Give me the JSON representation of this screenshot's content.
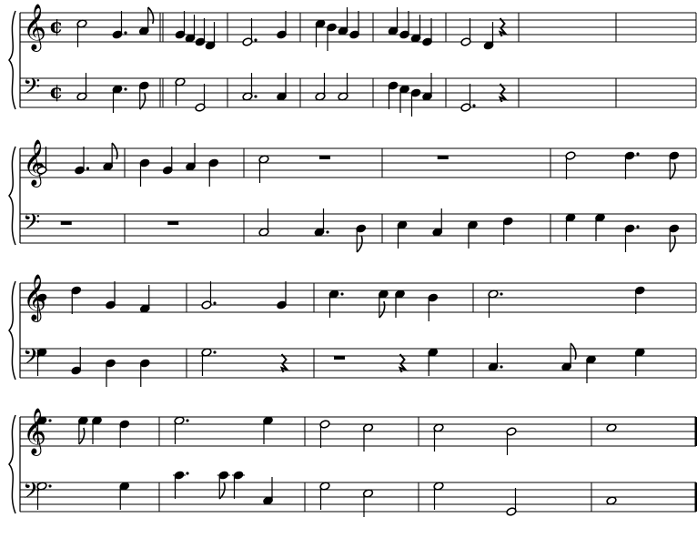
{
  "score": {
    "time_signature_symbol": "cut-time",
    "clefs": [
      "treble",
      "bass"
    ],
    "systems": [
      {
        "bars": 7,
        "show_time": true,
        "treble": [
          [
            0,
            0,
            5,
            "h"
          ],
          [
            0,
            2,
            2,
            "q."
          ],
          [
            0,
            3.5,
            3,
            "e"
          ],
          [
            1,
            0,
            2,
            "q"
          ],
          [
            1,
            1,
            1,
            "q"
          ],
          [
            1,
            2,
            0,
            "q"
          ],
          [
            1,
            3,
            -1,
            "q"
          ],
          [
            2,
            0,
            0,
            "h."
          ],
          [
            2,
            3,
            2,
            "q"
          ],
          [
            3,
            0,
            5,
            "q"
          ],
          [
            3,
            1,
            4,
            "q"
          ],
          [
            3,
            2,
            3,
            "q"
          ],
          [
            3,
            3,
            2,
            "q"
          ],
          [
            4,
            0,
            3,
            "q"
          ],
          [
            4,
            1,
            2,
            "q"
          ],
          [
            4,
            2,
            1,
            "q"
          ],
          [
            4,
            3,
            0,
            "q"
          ],
          [
            5,
            0,
            0,
            "h"
          ],
          [
            5,
            2,
            -1,
            "q"
          ],
          [
            5,
            3,
            0,
            "r"
          ]
        ],
        "bass": [
          [
            0,
            0,
            3,
            "h"
          ],
          [
            0,
            2,
            5,
            "q."
          ],
          [
            0,
            3.5,
            6,
            "e"
          ],
          [
            1,
            0,
            7,
            "h"
          ],
          [
            1,
            2,
            0,
            "h"
          ],
          [
            2,
            0,
            3,
            "h."
          ],
          [
            2,
            3,
            3,
            "q"
          ],
          [
            3,
            0,
            3,
            "h"
          ],
          [
            3,
            2,
            3,
            "h"
          ],
          [
            4,
            0,
            6,
            "q"
          ],
          [
            4,
            1,
            5,
            "q"
          ],
          [
            4,
            2,
            4,
            "q"
          ],
          [
            4,
            3,
            3,
            "q"
          ],
          [
            5,
            0,
            0,
            "h."
          ],
          [
            5,
            3,
            4,
            "r"
          ]
        ]
      },
      {
        "bars": 5,
        "show_time": false,
        "treble": [
          [
            0,
            0,
            2,
            "h"
          ],
          [
            0,
            2,
            2,
            "q."
          ],
          [
            0,
            3.5,
            3,
            "e"
          ],
          [
            1,
            0,
            4,
            "q"
          ],
          [
            1,
            1,
            2,
            "q"
          ],
          [
            1,
            2,
            3,
            "q"
          ],
          [
            1,
            3,
            4,
            "q"
          ],
          [
            2,
            0,
            5,
            "h"
          ],
          [
            2,
            2,
            6,
            "R"
          ],
          [
            3,
            1,
            6,
            "R"
          ],
          [
            4,
            0,
            6,
            "h"
          ],
          [
            4,
            2,
            6,
            "q."
          ],
          [
            4,
            3.5,
            6,
            "e"
          ]
        ],
        "bass": [
          [
            0,
            1,
            4,
            "R"
          ],
          [
            1,
            1,
            4,
            "R"
          ],
          [
            2,
            0,
            3,
            "h"
          ],
          [
            2,
            2,
            3,
            "q."
          ],
          [
            2,
            3.5,
            4,
            "e"
          ],
          [
            3,
            0,
            5,
            "q"
          ],
          [
            3,
            1,
            3,
            "q"
          ],
          [
            3,
            2,
            5,
            "q"
          ],
          [
            3,
            3,
            6,
            "q"
          ],
          [
            4,
            0,
            7,
            "q"
          ],
          [
            4,
            1,
            7,
            "q"
          ],
          [
            4,
            2,
            4,
            "q."
          ],
          [
            4,
            3.5,
            4,
            "e"
          ]
        ]
      },
      {
        "bars": 4,
        "show_time": false,
        "treble": [
          [
            0,
            0,
            4,
            "q"
          ],
          [
            0,
            1,
            6,
            "q"
          ],
          [
            0,
            2,
            2,
            "q"
          ],
          [
            0,
            3,
            1,
            "q"
          ],
          [
            1,
            0,
            2,
            "h."
          ],
          [
            1,
            3,
            2,
            "q"
          ],
          [
            2,
            0,
            5,
            "q."
          ],
          [
            2,
            1.5,
            5,
            "e"
          ],
          [
            2,
            2,
            5,
            "q"
          ],
          [
            2,
            3,
            4,
            "q"
          ],
          [
            3,
            0,
            5,
            "h."
          ],
          [
            3,
            3,
            6,
            "q"
          ]
        ],
        "bass": [
          [
            0,
            0,
            7,
            "q"
          ],
          [
            0,
            1,
            2,
            "q"
          ],
          [
            0,
            2,
            4,
            "q"
          ],
          [
            0,
            3,
            4,
            "q"
          ],
          [
            1,
            0,
            7,
            "h."
          ],
          [
            1,
            3,
            4,
            "r"
          ],
          [
            2,
            0,
            4,
            "R"
          ],
          [
            2,
            2,
            4,
            "r"
          ],
          [
            2,
            3,
            7,
            "q"
          ],
          [
            3,
            0,
            3,
            "q."
          ],
          [
            3,
            1.5,
            3,
            "e"
          ],
          [
            3,
            2,
            5,
            "q"
          ],
          [
            3,
            3,
            7,
            "q"
          ]
        ]
      },
      {
        "bars": 5,
        "show_time": false,
        "final": true,
        "treble": [
          [
            0,
            0,
            7,
            "q."
          ],
          [
            0,
            1.5,
            7,
            "e"
          ],
          [
            0,
            2,
            7,
            "q"
          ],
          [
            0,
            3,
            6,
            "q"
          ],
          [
            1,
            0,
            7,
            "h."
          ],
          [
            1,
            3,
            7,
            "q"
          ],
          [
            2,
            0,
            6,
            "h"
          ],
          [
            2,
            2,
            5,
            "h"
          ],
          [
            3,
            0,
            5,
            "h"
          ],
          [
            3,
            2,
            4,
            "h"
          ],
          [
            4,
            0,
            5,
            "w"
          ]
        ],
        "bass": [
          [
            0,
            0,
            7,
            "h."
          ],
          [
            0,
            3,
            7,
            "q"
          ],
          [
            1,
            0,
            10,
            "q."
          ],
          [
            1,
            1.5,
            10,
            "e"
          ],
          [
            1,
            2,
            10,
            "q"
          ],
          [
            1,
            3,
            3,
            "q"
          ],
          [
            2,
            0,
            7,
            "h"
          ],
          [
            2,
            2,
            5,
            "h"
          ],
          [
            3,
            0,
            7,
            "h"
          ],
          [
            3,
            2,
            0,
            "h"
          ],
          [
            4,
            0,
            3,
            "w"
          ]
        ]
      }
    ]
  }
}
